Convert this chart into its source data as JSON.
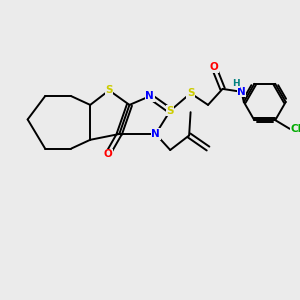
{
  "bg_color": "#ebebeb",
  "bond_color": "#000000",
  "atom_colors": {
    "S": "#cccc00",
    "N": "#0000ff",
    "O": "#ff0000",
    "Cl": "#00aa00",
    "H": "#008080",
    "C": "#000000"
  },
  "font_size": 7.0,
  "linewidth": 1.4
}
